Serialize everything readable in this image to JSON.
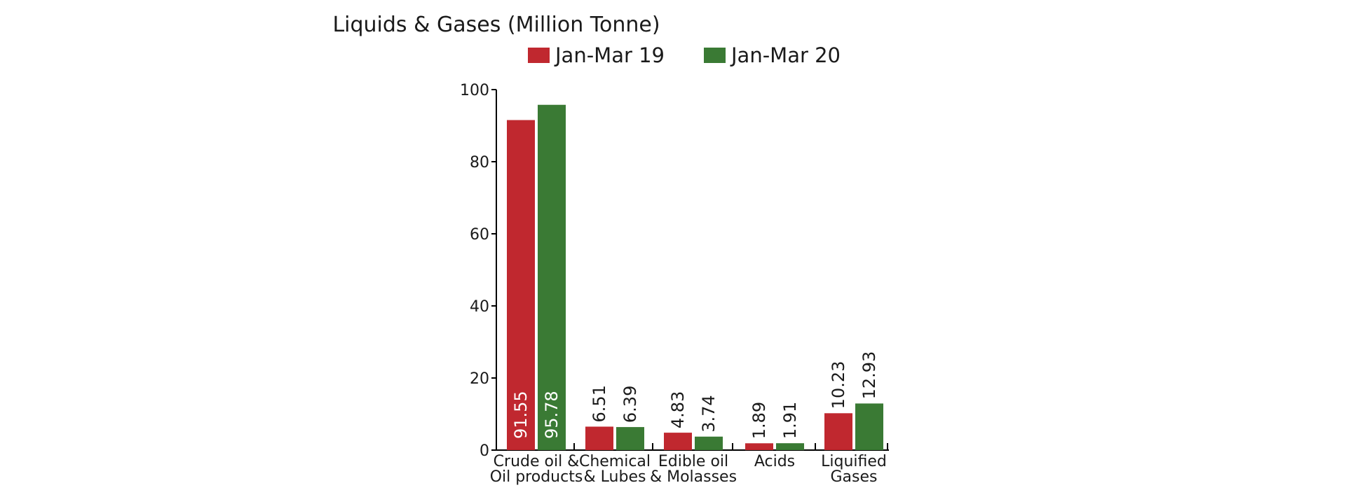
{
  "chart_data": {
    "type": "bar",
    "title": "Liquids & Gases (Million Tonne)",
    "categories": [
      [
        "Crude oil &",
        "Oil products"
      ],
      [
        "Chemical",
        "& Lubes"
      ],
      [
        "Edible oil",
        "& Molasses"
      ],
      [
        "Acids"
      ],
      [
        "Liquified",
        "Gases"
      ]
    ],
    "series": [
      {
        "name": "Jan-Mar 19",
        "color": "#c0282f",
        "values": [
          91.55,
          6.51,
          4.83,
          1.89,
          10.23
        ]
      },
      {
        "name": "Jan-Mar 20",
        "color": "#3a7a34",
        "values": [
          95.78,
          6.39,
          3.74,
          1.91,
          12.93
        ]
      }
    ],
    "yticks": [
      0,
      20,
      40,
      60,
      80,
      100
    ],
    "ylim": [
      0,
      100
    ],
    "xlabel": "",
    "ylabel": "",
    "grid": false,
    "legend_position": "top",
    "value_labels": "vertical; inside bar when tall, above bar otherwise"
  }
}
